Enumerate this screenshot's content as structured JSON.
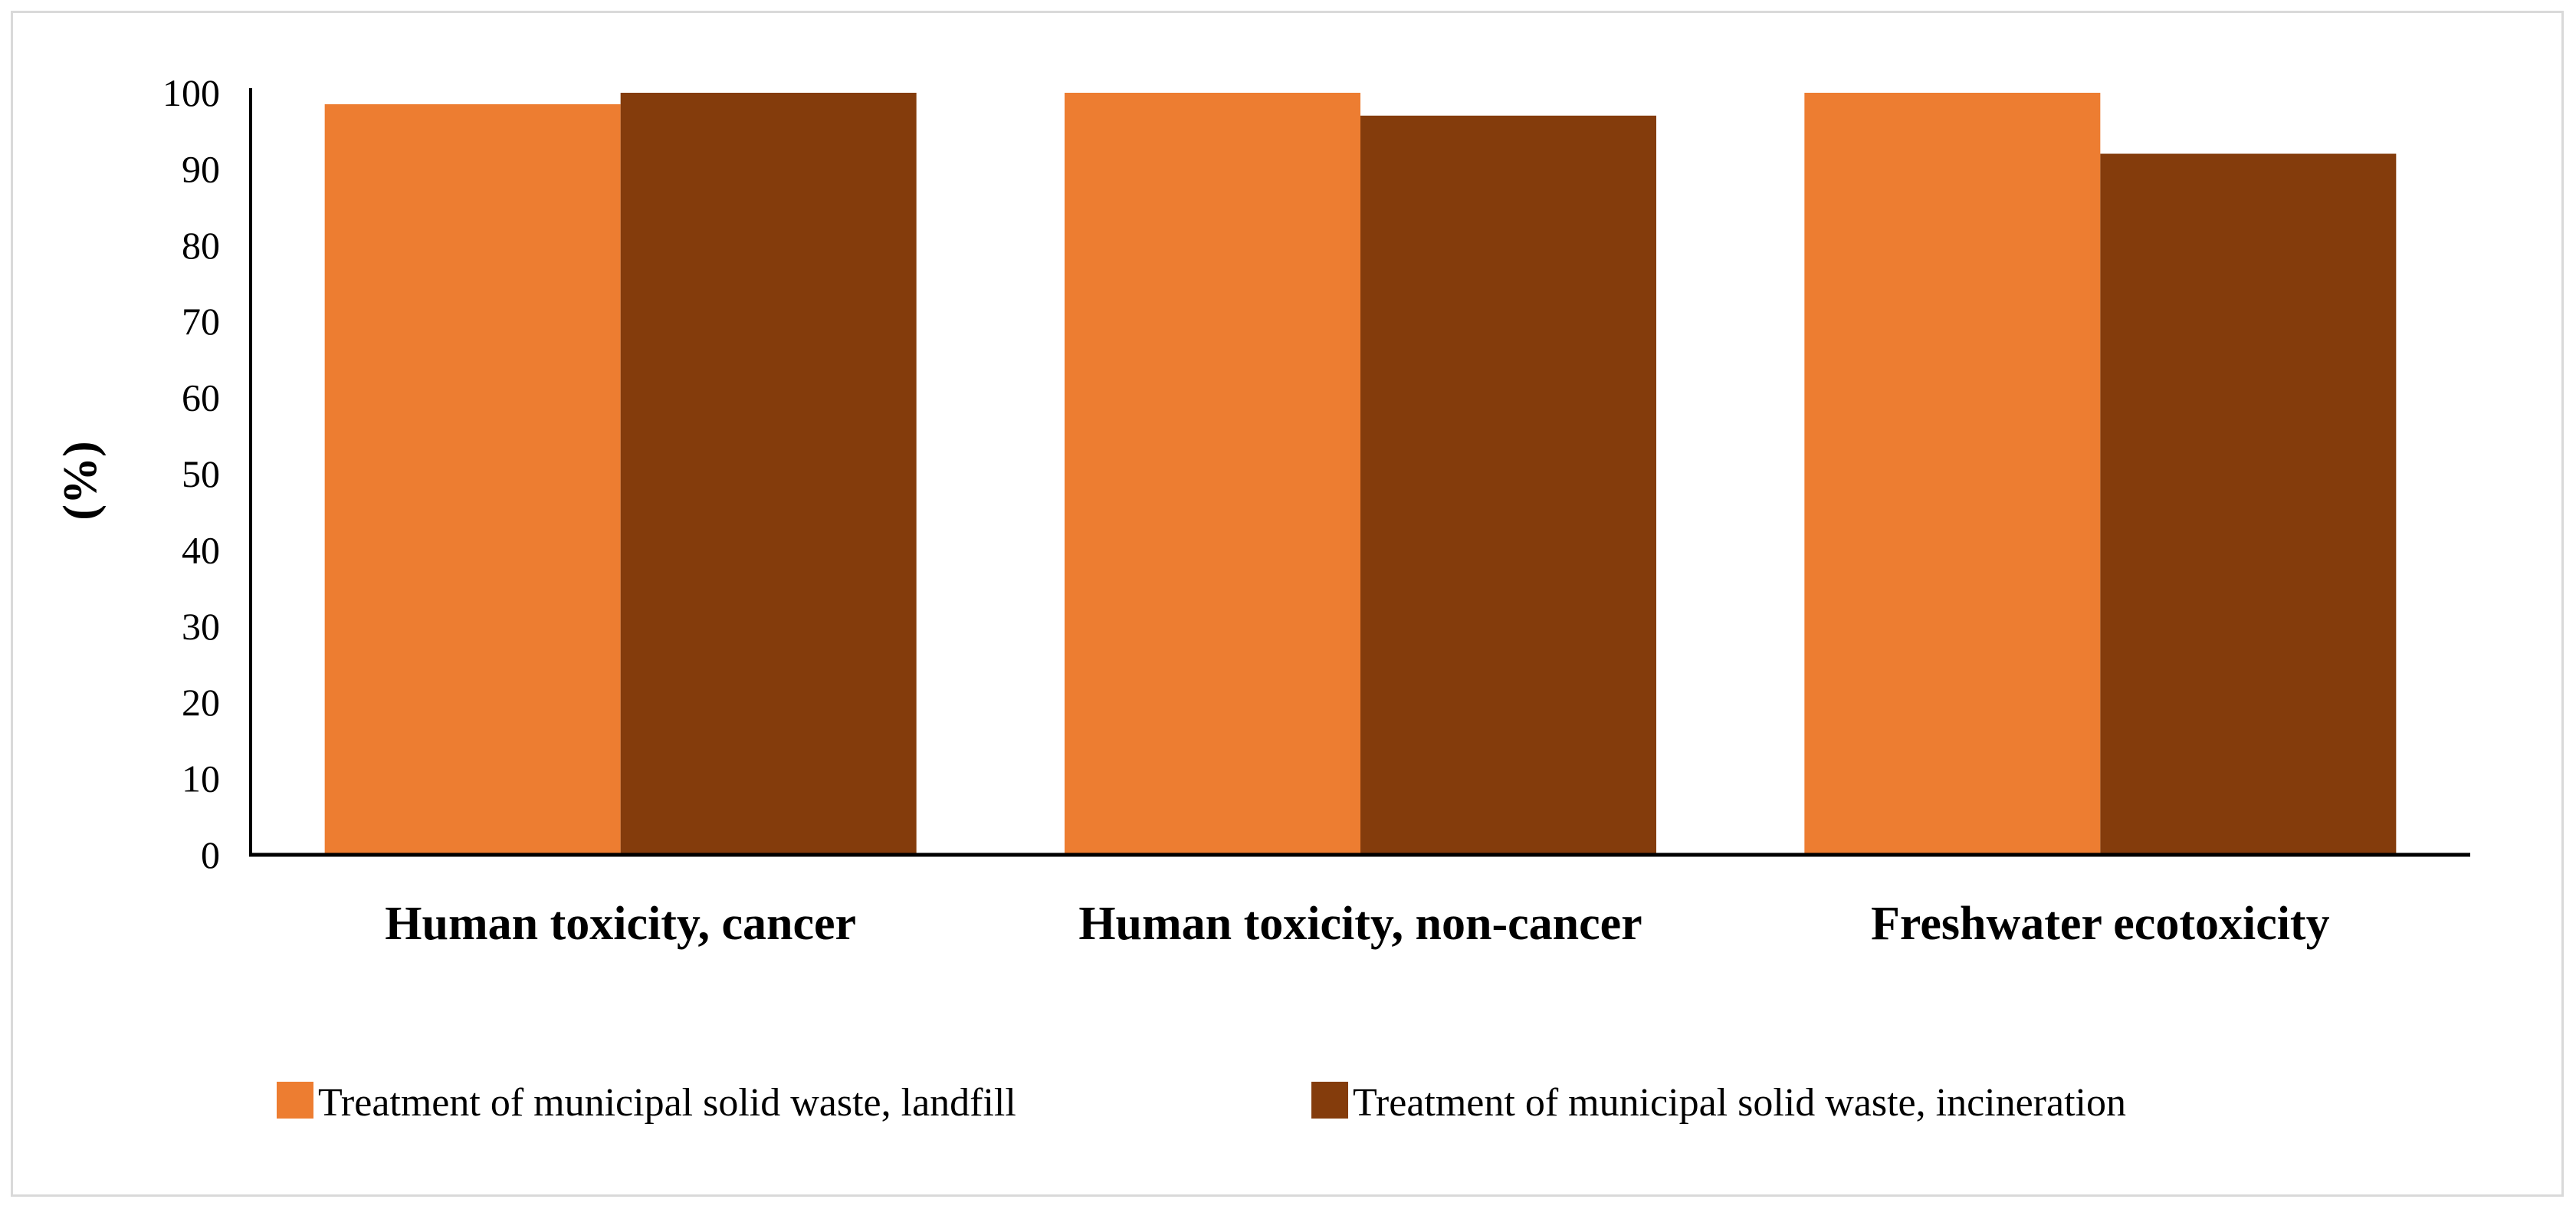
{
  "chart_data": {
    "type": "bar",
    "title": "",
    "xlabel": "",
    "ylabel": "(%)",
    "ylim": [
      0,
      100
    ],
    "yticks": [
      0,
      10,
      20,
      30,
      40,
      50,
      60,
      70,
      80,
      90,
      100
    ],
    "ytick_labels": [
      "0",
      "10",
      "20",
      "30",
      "40",
      "50",
      "60",
      "70",
      "80",
      "90",
      "100"
    ],
    "categories": [
      "Human toxicity, cancer",
      "Human toxicity, non-cancer",
      "Freshwater ecotoxicity"
    ],
    "series": [
      {
        "name": "Treatment of municipal solid waste, landfill",
        "color": "#ED7D31",
        "values": [
          98.5,
          100,
          100
        ]
      },
      {
        "name": "Treatment of municipal solid waste, incineration",
        "color": "#843C0C",
        "values": [
          100,
          97,
          92
        ]
      }
    ],
    "grid": false,
    "legend_position": "bottom"
  }
}
